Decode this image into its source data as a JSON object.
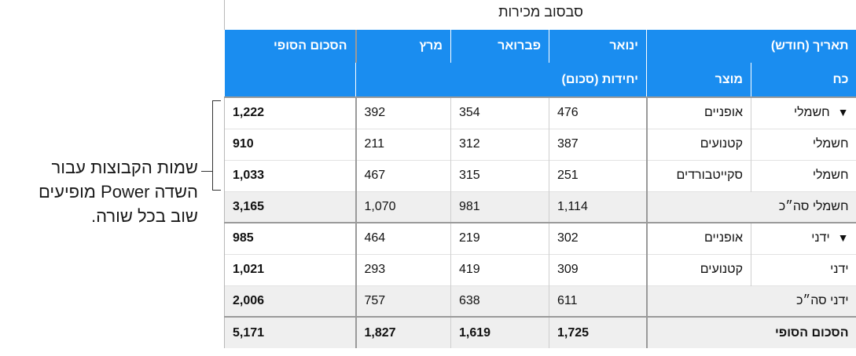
{
  "callout": {
    "lines": [
      "שמות הקבוצות עבור",
      "השדה Power מופיעים",
      "שוב בכל שורה."
    ]
  },
  "pivot": {
    "title": "סבסוב מכירות",
    "header1": {
      "date": "תאריך (חודש)",
      "jan": "ינואר",
      "feb": "פברואר",
      "mar": "מרץ",
      "total": "הסכום הסופי"
    },
    "header2": {
      "power": "כח",
      "product": "מוצר",
      "units": "יחידות (סכום)"
    },
    "expand_glyph": "▼",
    "rows": [
      {
        "power": "חשמלי",
        "product": "אופניים",
        "jan": "476",
        "feb": "354",
        "mar": "392",
        "total": "1,222"
      },
      {
        "power": "חשמלי",
        "product": "קטנועים",
        "jan": "387",
        "feb": "312",
        "mar": "211",
        "total": "910"
      },
      {
        "power": "חשמלי",
        "product": "סקייטבורדים",
        "jan": "251",
        "feb": "315",
        "mar": "467",
        "total": "1,033"
      },
      {
        "label": "חשמלי סה״כ",
        "jan": "1,114",
        "feb": "981",
        "mar": "1,070",
        "total": "3,165"
      },
      {
        "power": "ידני",
        "product": "אופניים",
        "jan": "302",
        "feb": "219",
        "mar": "464",
        "total": "985"
      },
      {
        "power": "ידני",
        "product": "קטנועים",
        "jan": "309",
        "feb": "419",
        "mar": "293",
        "total": "1,021"
      },
      {
        "label": "ידני סה״כ",
        "jan": "611",
        "feb": "638",
        "mar": "757",
        "total": "2,006"
      },
      {
        "label": "הסכום הסופי",
        "jan": "1,725",
        "feb": "1,619",
        "mar": "1,827",
        "total": "5,171"
      }
    ]
  }
}
